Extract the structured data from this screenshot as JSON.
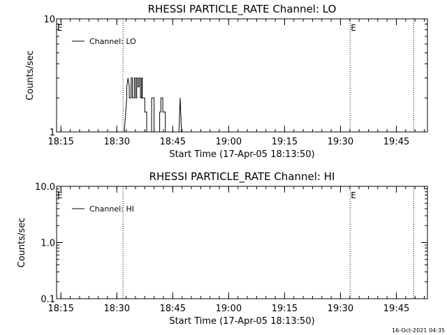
{
  "footer_timestamp": "16-Oct-2021 04:35",
  "chart_data": [
    {
      "type": "line",
      "title": "RHESSI PARTICLE_RATE Channel: LO",
      "xlabel": "Start Time (17-Apr-05 18:13:50)",
      "ylabel": "Counts/sec",
      "y_scale": "log",
      "ylim": [
        1,
        10
      ],
      "y_ticks": [
        1,
        10
      ],
      "y_tick_labels": [
        "1",
        "10"
      ],
      "xlim": [
        "18:13:50",
        "19:53:20"
      ],
      "x_ticks": [
        "18:15",
        "18:30",
        "18:45",
        "19:00",
        "19:15",
        "19:30",
        "19:45"
      ],
      "grid": false,
      "legend": {
        "entries": [
          "Channel: LO"
        ],
        "placement": "top-left"
      },
      "marker_lines": [
        {
          "time": "18:31:40",
          "label": ""
        },
        {
          "time": "19:32:35",
          "label": "E"
        },
        {
          "time": "19:49:40",
          "label": ""
        }
      ],
      "edge_labels": [
        {
          "time": "18:13:50",
          "label": "E"
        }
      ],
      "series": [
        {
          "name": "Channel: LO",
          "x": [
            "18:13:50",
            "18:32:00",
            "18:32:40",
            "18:32:40",
            "18:33:00",
            "18:33:20",
            "18:33:20",
            "18:33:50",
            "18:33:50",
            "18:34:10",
            "18:34:10",
            "18:34:40",
            "18:34:40",
            "18:35:00",
            "18:35:00",
            "18:35:20",
            "18:35:20",
            "18:35:40",
            "18:35:40",
            "18:36:00",
            "18:36:00",
            "18:36:20",
            "18:36:20",
            "18:36:40",
            "18:36:40",
            "18:36:50",
            "18:36:50",
            "18:37:30",
            "18:37:30",
            "18:38:00",
            "18:38:00",
            "18:39:20",
            "18:39:20",
            "18:40:00",
            "18:40:00",
            "18:40:50",
            "18:41:30",
            "18:41:30",
            "18:41:50",
            "18:41:50",
            "18:42:20",
            "18:42:20",
            "18:43:00",
            "18:43:00",
            "18:46:40",
            "18:47:00",
            "18:47:20",
            "18:47:40",
            "18:50:00"
          ],
          "y": [
            1,
            1,
            2,
            2.5,
            3,
            2.5,
            2,
            2,
            3,
            3,
            2,
            2,
            3,
            3,
            2,
            2,
            3,
            3,
            2.5,
            2.5,
            3,
            3,
            2,
            2,
            3,
            3,
            2,
            2,
            1.5,
            1.5,
            1,
            1,
            2,
            2,
            1,
            1,
            1,
            1.5,
            1.5,
            2,
            2,
            1.5,
            1.5,
            1,
            1,
            2,
            1,
            1,
            1
          ]
        }
      ]
    },
    {
      "type": "line",
      "title": "RHESSI PARTICLE_RATE Channel: HI",
      "xlabel": "Start Time (17-Apr-05 18:13:50)",
      "ylabel": "Counts/sec",
      "y_scale": "log",
      "ylim": [
        0.1,
        10
      ],
      "y_ticks": [
        0.1,
        1,
        10
      ],
      "y_tick_labels": [
        "0.1",
        "1.0",
        "10.0"
      ],
      "xlim": [
        "18:13:50",
        "19:53:20"
      ],
      "x_ticks": [
        "18:15",
        "18:30",
        "18:45",
        "19:00",
        "19:15",
        "19:30",
        "19:45"
      ],
      "grid": false,
      "legend": {
        "entries": [
          "Channel: HI"
        ],
        "placement": "top-left"
      },
      "marker_lines": [
        {
          "time": "18:31:40",
          "label": ""
        },
        {
          "time": "19:32:35",
          "label": "E"
        },
        {
          "time": "19:49:40",
          "label": ""
        }
      ],
      "edge_labels": [
        {
          "time": "18:13:50",
          "label": "E"
        }
      ],
      "series": [
        {
          "name": "Channel: HI",
          "x": [],
          "y": []
        }
      ]
    }
  ]
}
